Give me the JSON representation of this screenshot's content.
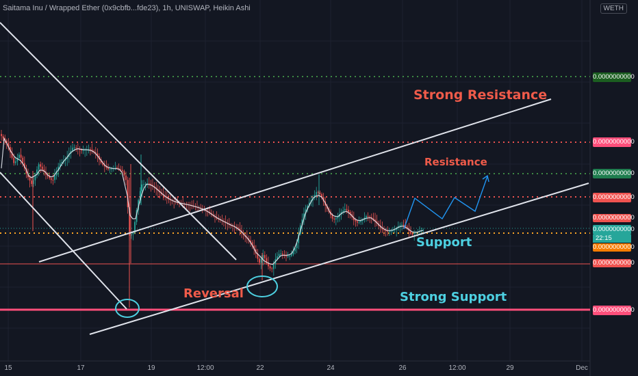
{
  "chart": {
    "title": "Saitama Inu / Wrapped Ether (0x9cbfb...fde23), 1h, UNISWAP, Heikin Ashi",
    "currency_button": "WETH",
    "countdown": "22:15"
  },
  "chart_data": {
    "type": "candlestick",
    "x_tick_labels": [
      "15",
      "17",
      "19",
      "12:00",
      "22",
      "24",
      "26",
      "12:00",
      "29",
      "Dec"
    ],
    "price_labels": [
      {
        "text": "0.0000000000",
        "color": "#1b5e20"
      },
      {
        "text": "0.0000000000",
        "color": "#ff4f7b"
      },
      {
        "text": "0.0000000000",
        "color": "#1f7d4f"
      },
      {
        "text": "0.0000000000",
        "color": "#ef5350"
      },
      {
        "text": "0.0000000000",
        "color": "#ef5350"
      },
      {
        "text": "0.0000000000",
        "color": "#26a69a"
      },
      {
        "text": "0.0000000000",
        "color": "#f57c00"
      },
      {
        "text": "0.0000000000",
        "color": "#ef5350"
      },
      {
        "text": "0.0000000000",
        "color": "#ff4f7b"
      }
    ],
    "annotations": [
      {
        "text": "Strong Resistance",
        "color": "#f05b4a"
      },
      {
        "text": "Resistance",
        "color": "#f05b4a"
      },
      {
        "text": "Support",
        "color": "#4dd0e1"
      },
      {
        "text": "Strong Support",
        "color": "#4dd0e1"
      },
      {
        "text": "Reversal",
        "color": "#f05b4a"
      }
    ],
    "grid": true,
    "colors": {
      "bull": "#26a69a",
      "bear": "#ef5350",
      "background": "#131722",
      "trendline": "#e0e3eb",
      "projection": "#2196f3",
      "dotted_green": "#4caf50",
      "dotted_red": "#ef5350",
      "dotted_orange": "#ffa726",
      "strong_support": "#ff4f7b"
    }
  }
}
